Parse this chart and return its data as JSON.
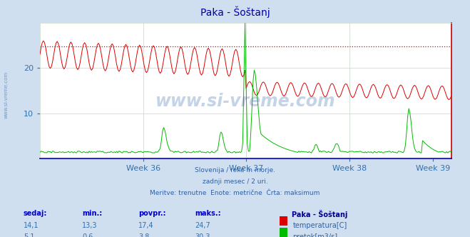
{
  "title": "Paka - Šoštanj",
  "title_color": "#0000aa",
  "bg_color": "#d0dff0",
  "plot_bg_color": "#ffffff",
  "grid_color": "#c8d8c8",
  "x_ticks_labels": [
    "Week 36",
    "Week 37",
    "Week 38",
    "Week 39"
  ],
  "y_min": 0,
  "y_max": 30,
  "y_ticks": [
    10,
    20
  ],
  "temp_color": "#dd0000",
  "flow_color": "#00bb00",
  "temp_max_line": 24.7,
  "flow_max_line": 30.3,
  "watermark": "www.si-vreme.com",
  "watermark_color": "#4070b0",
  "subtitle_lines": [
    "Slovenija / reke in morje.",
    "zadnji mesec / 2 uri.",
    "Meritve: trenutne  Enote: metrične  Črta: maksimum"
  ],
  "subtitle_color": "#3060a0",
  "table_headers": [
    "sedaj:",
    "min.:",
    "povpr.:",
    "maks.:"
  ],
  "table_header_color": "#0000cc",
  "table_values_temp": [
    "14,1",
    "13,3",
    "17,4",
    "24,7"
  ],
  "table_values_flow": [
    "5,1",
    "0,6",
    "3,8",
    "30,3"
  ],
  "table_value_color": "#3070b0",
  "legend_title": "Paka - Šoštanj",
  "legend_title_color": "#000088",
  "legend_temp_label": "temperatura[C]",
  "legend_flow_label": "pretok[m3/s]",
  "axis_label_color": "#3070b0",
  "x_label_color": "#3070b0",
  "spine_bottom_color": "#0000cc",
  "spine_right_color": "#cc0000",
  "n_points": 360
}
